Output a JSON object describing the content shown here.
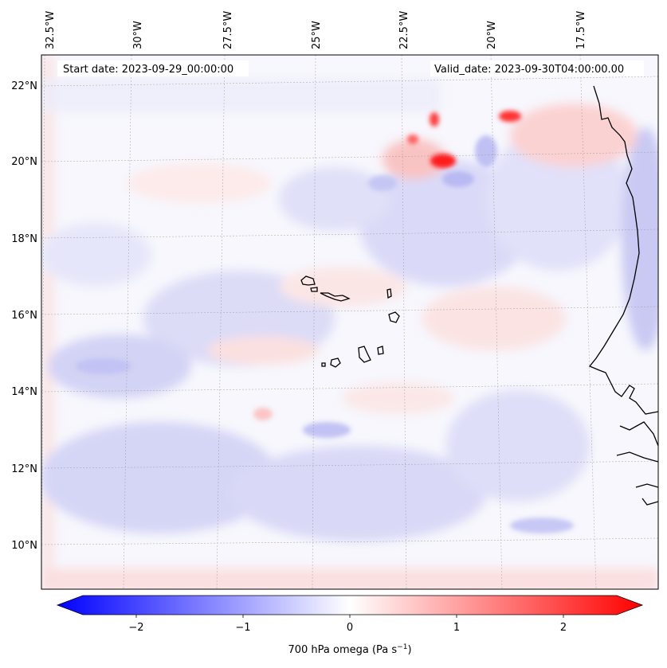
{
  "map": {
    "start_date_label": "Start date: 2023-09-29_00:00:00",
    "valid_date_label": "Valid_date: 2023-09-30T04:00:00.00",
    "lon_labels": [
      "32.5°W",
      "30°W",
      "27.5°W",
      "25°W",
      "22.5°W",
      "20°W",
      "17.5°W"
    ],
    "lat_labels": [
      "22°N",
      "20°N",
      "18°N",
      "16°N",
      "14°N",
      "12°N",
      "10°N"
    ],
    "gridlines": true,
    "coastline_color": "#000000"
  },
  "colorbar": {
    "label": "700 hPa omega (Pa s",
    "label_sup": "−1",
    "label_close": ")",
    "ticks": [
      "−2",
      "−1",
      "0",
      "1",
      "2"
    ],
    "colors": {
      "min": "#0000ff",
      "mid": "#ffffff",
      "max": "#ff0000"
    },
    "range": [
      -2.75,
      2.75
    ]
  }
}
